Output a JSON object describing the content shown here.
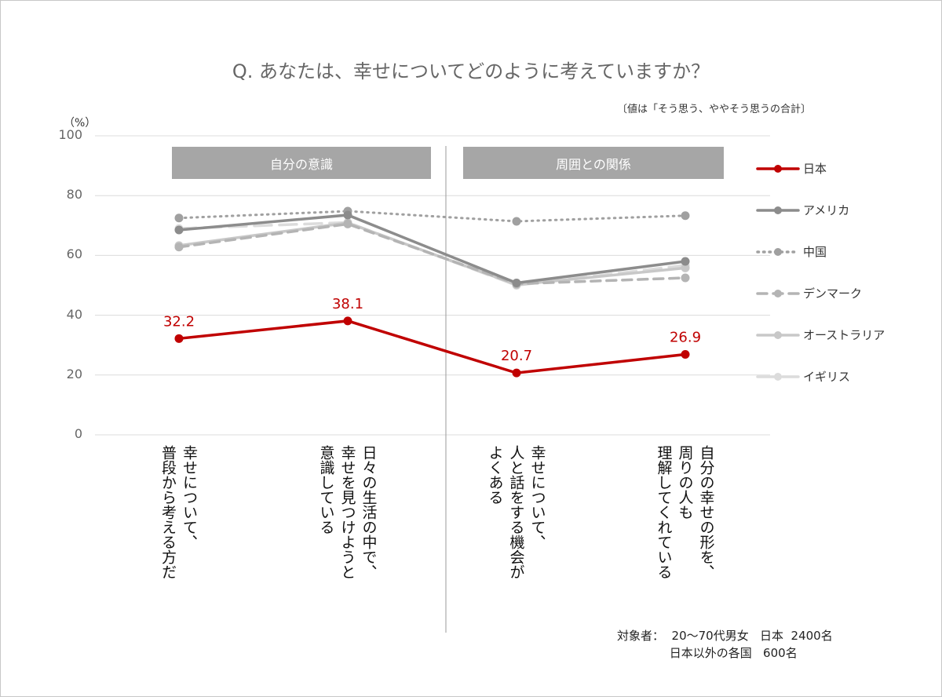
{
  "chart_data": {
    "type": "line",
    "title": "Q. あなたは、幸せについてどのように考えていますか？",
    "note": "〔値は「そう思う、ややそう思うの合計〕",
    "ylabel": "（%）",
    "ylim": [
      0,
      100
    ],
    "yticks": [
      "0",
      "20",
      "40",
      "60",
      "80",
      "100"
    ],
    "grid": true,
    "legend": "right",
    "groups": [
      "自分の意識",
      "周囲との関係"
    ],
    "categories": [
      [
        "幸せについて、",
        "普段から考える方だ"
      ],
      [
        "日々の生活の中で、",
        "幸せを見つけようと",
        "意識している"
      ],
      [
        "幸せについて、",
        "人と話をする機会が",
        "よくある"
      ],
      [
        "自分の幸せの形を、",
        "周りの人も",
        "理解してくれている"
      ]
    ],
    "series": [
      {
        "name": "日本",
        "values": [
          32.2,
          38.1,
          20.7,
          26.9
        ],
        "color": "#c00000",
        "style": "solid",
        "labels": [
          "32.2",
          "38.1",
          "20.7",
          "26.9"
        ]
      },
      {
        "name": "アメリカ",
        "values": [
          68.5,
          73.5,
          50.8,
          58.0
        ],
        "color": "#8c8c8c",
        "style": "solid"
      },
      {
        "name": "中国",
        "values": [
          72.5,
          74.8,
          71.4,
          73.3
        ],
        "color": "#a0a0a0",
        "style": "dotted"
      },
      {
        "name": "デンマーク",
        "values": [
          62.8,
          70.5,
          50.5,
          52.5
        ],
        "color": "#b4b4b4",
        "style": "dashed"
      },
      {
        "name": "オーストラリア",
        "values": [
          63.3,
          70.9,
          50.2,
          55.8
        ],
        "color": "#c8c8c8",
        "style": "solid"
      },
      {
        "name": "イギリス",
        "values": [
          69.0,
          71.0,
          50.0,
          56.7
        ],
        "color": "#dcdcdc",
        "style": "longdash"
      }
    ]
  },
  "footer": "対象者：  20～70代男女   日本  2400名\n              日本以外の各国   600名"
}
